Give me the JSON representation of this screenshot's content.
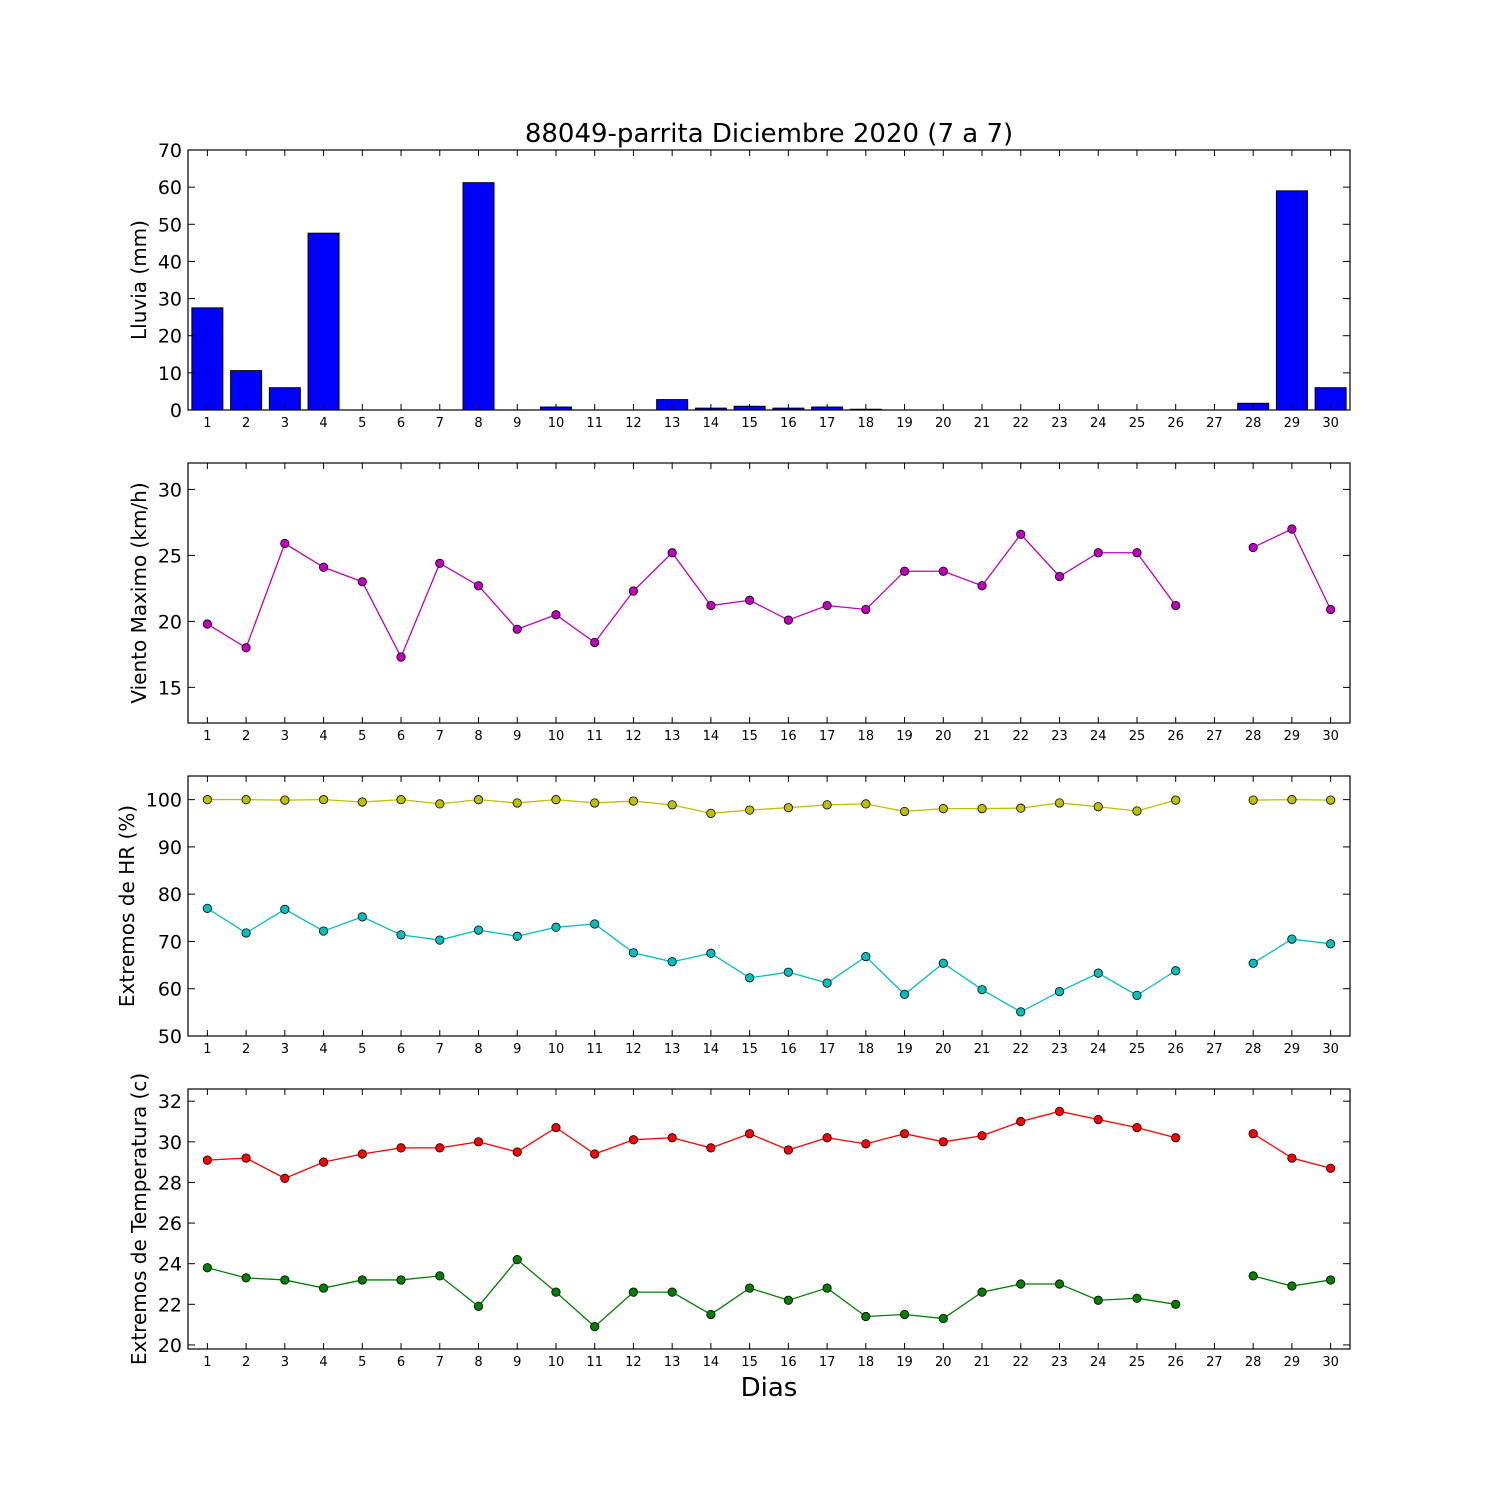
{
  "figure": {
    "title": "88049-parrita Diciembre 2020  (7 a 7)",
    "xlabel": "Dias",
    "x_ticks": [
      "1",
      "2",
      "3",
      "4",
      "5",
      "6",
      "7",
      "8",
      "9",
      "10",
      "11",
      "12",
      "13",
      "14",
      "15",
      "16",
      "17",
      "18",
      "19",
      "20",
      "21",
      "22",
      "23",
      "24",
      "25",
      "26",
      "27",
      "28",
      "29",
      "30"
    ]
  },
  "chart_data": [
    {
      "type": "bar",
      "ylabel": "Lluvia (mm)",
      "ylim": [
        0,
        70
      ],
      "yticks": [
        0,
        10,
        20,
        30,
        40,
        50,
        60,
        70
      ],
      "categories": [
        "1",
        "2",
        "3",
        "4",
        "5",
        "6",
        "7",
        "8",
        "9",
        "10",
        "11",
        "12",
        "13",
        "14",
        "15",
        "16",
        "17",
        "18",
        "19",
        "20",
        "21",
        "22",
        "23",
        "24",
        "25",
        "26",
        "27",
        "28",
        "29",
        "30"
      ],
      "series": [
        {
          "color": "#0000ff",
          "values": [
            27.5,
            10.6,
            6.0,
            47.6,
            0,
            0,
            0,
            61.2,
            0,
            0.8,
            0,
            0,
            2.8,
            0.5,
            1.0,
            0.5,
            0.8,
            0.2,
            0,
            0,
            0,
            0,
            0,
            0,
            0,
            0,
            0,
            1.8,
            59.0,
            6.0
          ]
        }
      ]
    },
    {
      "type": "line",
      "ylabel": "Viento Maximo (km/h)",
      "ylim": [
        12.3,
        32
      ],
      "yticks": [
        15,
        20,
        25,
        30
      ],
      "x": [
        1,
        2,
        3,
        4,
        5,
        6,
        7,
        8,
        9,
        10,
        11,
        12,
        13,
        14,
        15,
        16,
        17,
        18,
        19,
        20,
        21,
        22,
        23,
        24,
        25,
        26,
        27,
        28,
        29,
        30
      ],
      "series": [
        {
          "color": "#bf00bf",
          "values": [
            19.8,
            18.0,
            25.9,
            24.1,
            23.0,
            17.3,
            24.4,
            22.7,
            19.4,
            20.5,
            18.4,
            22.3,
            25.2,
            21.2,
            21.6,
            20.1,
            21.2,
            20.9,
            23.8,
            23.8,
            22.7,
            26.6,
            23.4,
            25.2,
            25.2,
            21.2,
            null,
            25.6,
            27.0,
            20.9
          ]
        }
      ]
    },
    {
      "type": "line",
      "ylabel": "Extremos de HR (%)",
      "ylim": [
        50,
        105
      ],
      "yticks": [
        50,
        60,
        70,
        80,
        90,
        100
      ],
      "x": [
        1,
        2,
        3,
        4,
        5,
        6,
        7,
        8,
        9,
        10,
        11,
        12,
        13,
        14,
        15,
        16,
        17,
        18,
        19,
        20,
        21,
        22,
        23,
        24,
        25,
        26,
        27,
        28,
        29,
        30
      ],
      "series": [
        {
          "color": "#bfbf00",
          "values": [
            100,
            100,
            99.9,
            100,
            99.5,
            100,
            99.1,
            100,
            99.3,
            100,
            99.3,
            99.7,
            98.9,
            97.1,
            97.8,
            98.3,
            98.9,
            99.1,
            97.5,
            98.1,
            98.1,
            98.2,
            99.3,
            98.5,
            97.6,
            99.9,
            null,
            99.9,
            100,
            99.9
          ]
        },
        {
          "color": "#00bfbf",
          "values": [
            77.0,
            71.8,
            76.8,
            72.2,
            75.2,
            71.4,
            70.3,
            72.4,
            71.1,
            73.0,
            73.7,
            67.6,
            65.7,
            67.5,
            62.3,
            63.5,
            61.2,
            66.8,
            58.8,
            65.4,
            59.8,
            55.1,
            59.4,
            63.3,
            58.6,
            63.8,
            null,
            65.4,
            70.5,
            69.5
          ]
        }
      ]
    },
    {
      "type": "line",
      "ylabel": "Extremos de Temperatura (c)",
      "ylim": [
        19.8,
        32.6
      ],
      "yticks": [
        20,
        22,
        24,
        26,
        28,
        30,
        32
      ],
      "x": [
        1,
        2,
        3,
        4,
        5,
        6,
        7,
        8,
        9,
        10,
        11,
        12,
        13,
        14,
        15,
        16,
        17,
        18,
        19,
        20,
        21,
        22,
        23,
        24,
        25,
        26,
        27,
        28,
        29,
        30
      ],
      "series": [
        {
          "color": "#ff0000",
          "values": [
            29.1,
            29.2,
            28.2,
            29.0,
            29.4,
            29.7,
            29.7,
            30.0,
            29.5,
            30.7,
            29.4,
            30.1,
            30.2,
            29.7,
            30.4,
            29.6,
            30.2,
            29.9,
            30.4,
            30.0,
            30.3,
            31.0,
            31.5,
            31.1,
            30.7,
            30.2,
            null,
            30.4,
            29.2,
            28.7
          ]
        },
        {
          "color": "#008000",
          "values": [
            23.8,
            23.3,
            23.2,
            22.8,
            23.2,
            23.2,
            23.4,
            21.9,
            24.2,
            22.6,
            20.9,
            22.6,
            22.6,
            21.5,
            22.8,
            22.2,
            22.8,
            21.4,
            21.5,
            21.3,
            22.6,
            23.0,
            23.0,
            22.2,
            22.3,
            22.0,
            null,
            23.4,
            22.9,
            23.2
          ]
        }
      ]
    }
  ]
}
